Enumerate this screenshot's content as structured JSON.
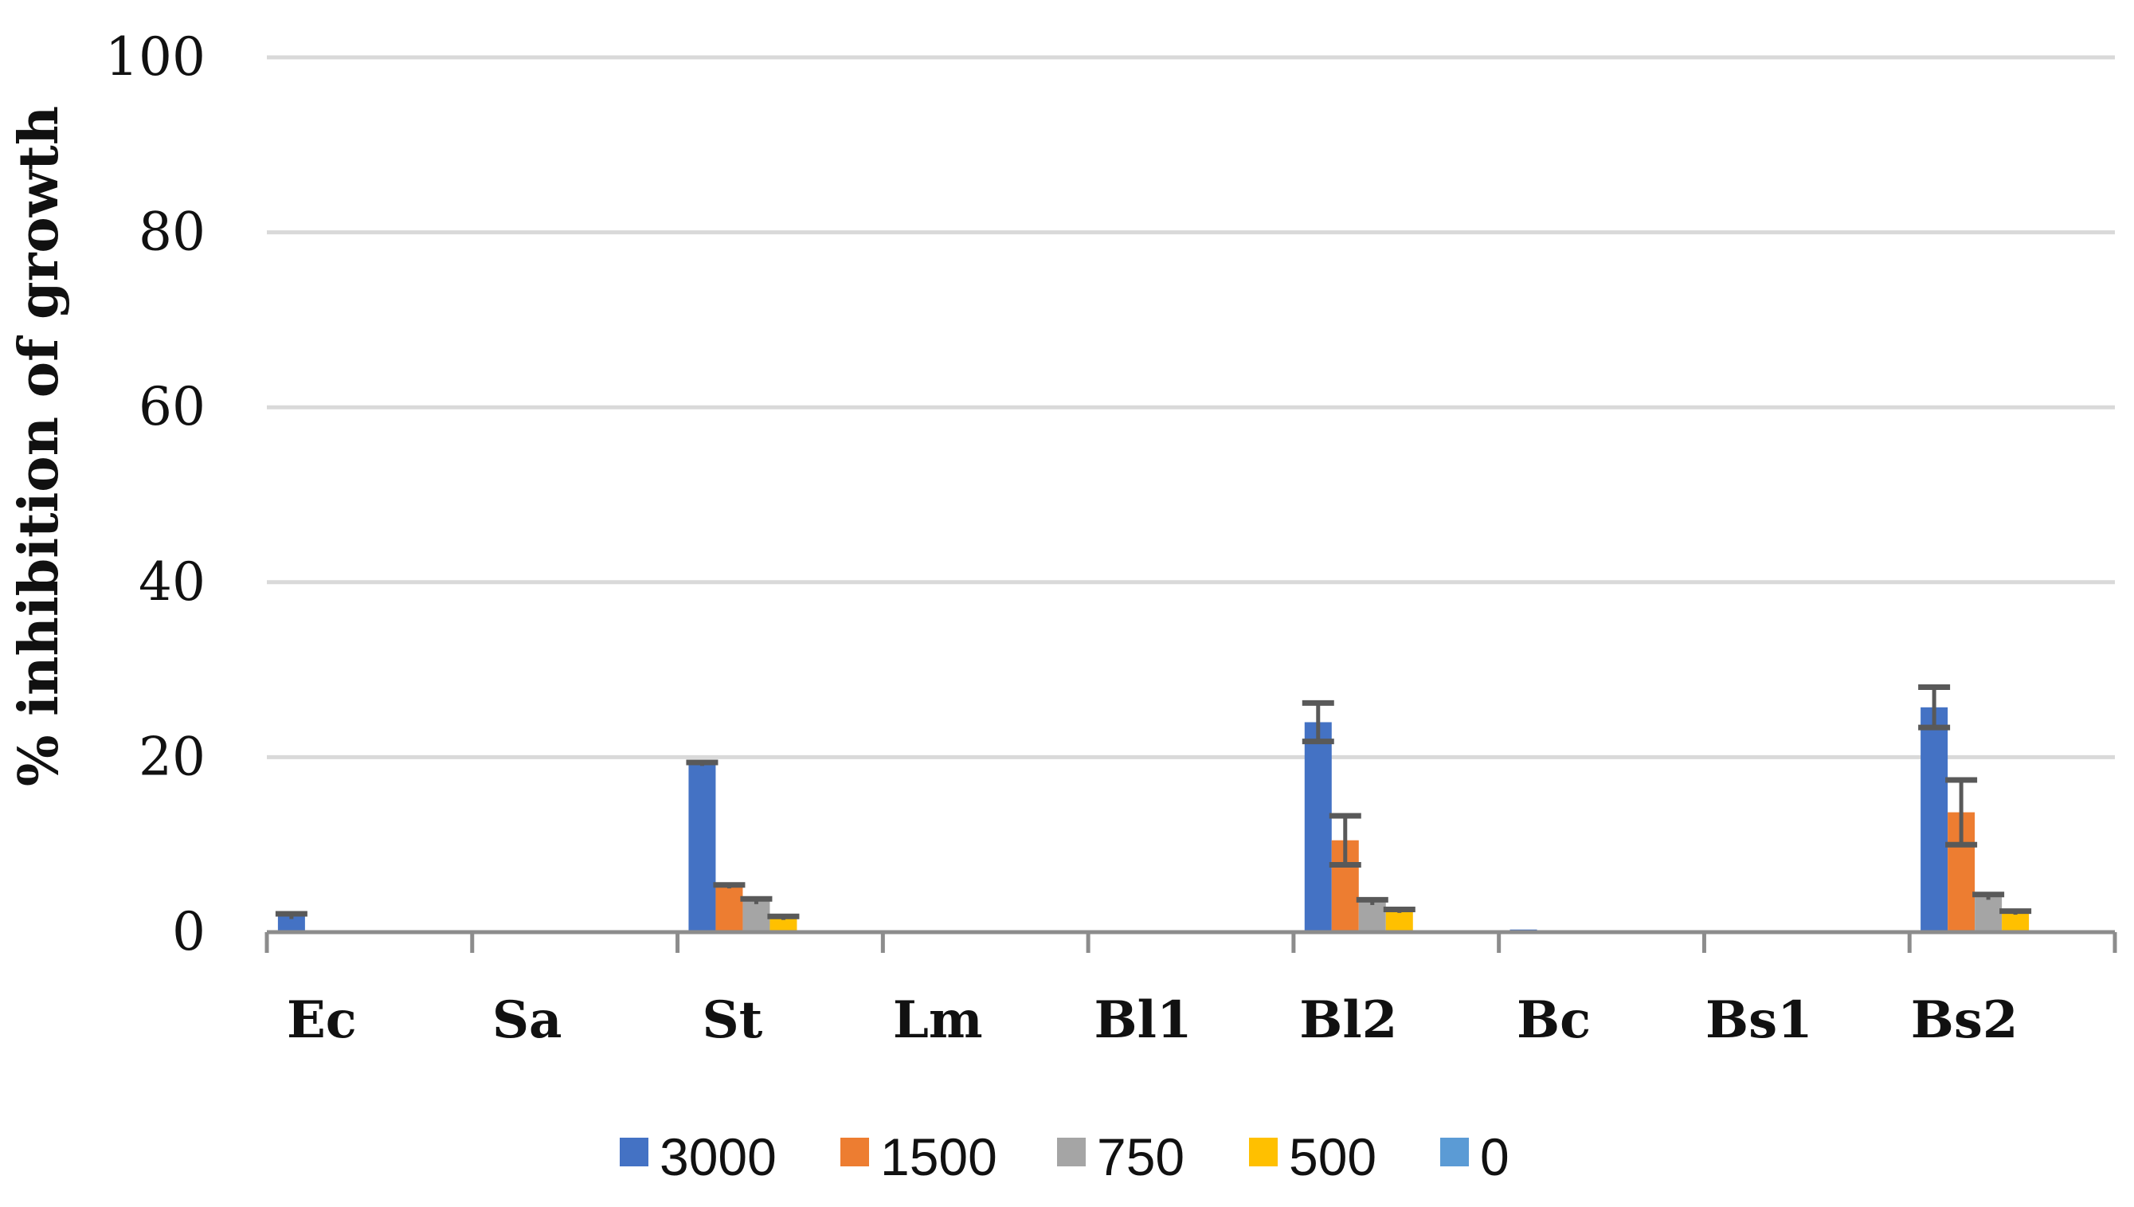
{
  "chart_data": {
    "type": "bar",
    "title": "",
    "xlabel": "",
    "ylabel": "% inhibition of growth",
    "ylim": [
      0,
      100
    ],
    "yticks": [
      "0",
      "20",
      "40",
      "60",
      "80",
      "100"
    ],
    "grid": true,
    "legend_position": "bottom",
    "categories": [
      "Ec",
      "Sa",
      "St",
      "Lm",
      "Bl1",
      "Bl2",
      "Bc",
      "Bs1",
      "Bs2"
    ],
    "series": [
      {
        "name": "3000",
        "color": "#4472C4",
        "values": [
          1.8,
          0,
          19.2,
          0,
          0,
          24.0,
          0.3,
          0,
          25.7
        ],
        "errors": [
          0.3,
          0,
          0.2,
          0,
          0,
          2.2,
          0,
          0,
          2.3
        ]
      },
      {
        "name": "1500",
        "color": "#ED7D31",
        "values": [
          0,
          0,
          5.2,
          0,
          0,
          10.5,
          0,
          0,
          13.7
        ],
        "errors": [
          0,
          0,
          0.2,
          0,
          0,
          2.8,
          0,
          0,
          3.7
        ]
      },
      {
        "name": "750",
        "color": "#A5A5A5",
        "values": [
          0.2,
          0.2,
          3.5,
          0.2,
          0.2,
          3.4,
          0.2,
          0.2,
          4.0
        ],
        "errors": [
          0,
          0,
          0.3,
          0,
          0,
          0.3,
          0,
          0,
          0.3
        ]
      },
      {
        "name": "500",
        "color": "#FFC000",
        "values": [
          0,
          0,
          1.6,
          0,
          0,
          2.4,
          0,
          0,
          2.2
        ],
        "errors": [
          0,
          0,
          0.2,
          0,
          0,
          0.2,
          0,
          0,
          0.2
        ]
      },
      {
        "name": "0",
        "color": "#5B9BD5",
        "values": [
          0,
          0,
          0,
          0,
          0,
          0,
          0,
          0,
          0
        ],
        "errors": [
          0,
          0,
          0,
          0,
          0,
          0,
          0,
          0,
          0
        ]
      }
    ]
  }
}
